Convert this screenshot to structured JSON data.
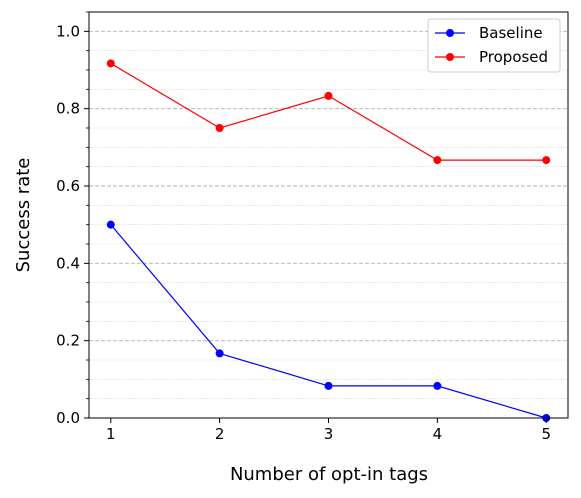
{
  "chart_data": {
    "type": "line",
    "title": "",
    "xlabel": "Number of opt-in tags",
    "ylabel": "Success rate",
    "x": [
      1,
      2,
      3,
      4,
      5
    ],
    "xticks": [
      "1",
      "2",
      "3",
      "4",
      "5"
    ],
    "yticks": [
      "0.0",
      "0.2",
      "0.4",
      "0.6",
      "0.8",
      "1.0"
    ],
    "xlim": [
      0.8,
      5.2
    ],
    "ylim": [
      0.0,
      1.05
    ],
    "grid": true,
    "legend_position": "top-right",
    "series": [
      {
        "name": "Baseline",
        "color": "#0000ff",
        "values": [
          0.5,
          0.167,
          0.083,
          0.083,
          0.0
        ]
      },
      {
        "name": "Proposed",
        "color": "#ff0000",
        "values": [
          0.917,
          0.75,
          0.833,
          0.667,
          0.667
        ]
      }
    ]
  }
}
